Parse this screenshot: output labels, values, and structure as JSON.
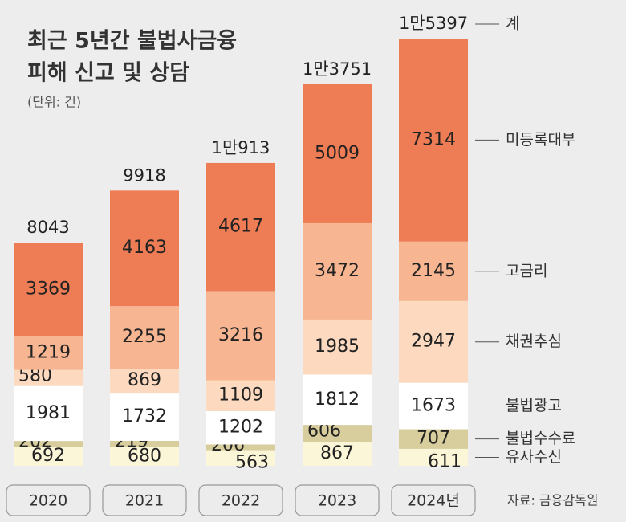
{
  "chart_data": {
    "type": "stacked-bar",
    "title": [
      "최근 5년간 불법사금융",
      "피해 신고 및 상담"
    ],
    "unit": "(단위: 건)",
    "source": "자료: 금융감독원",
    "categories": [
      "2020",
      "2021",
      "2022",
      "2023",
      "2024년"
    ],
    "series": [
      {
        "name": "유사수신",
        "color": "#fbf6d8",
        "values": [
          692,
          680,
          563,
          867,
          611
        ]
      },
      {
        "name": "불법수수료",
        "color": "#d8cd9c",
        "values": [
          202,
          219,
          206,
          606,
          707
        ]
      },
      {
        "name": "불법광고",
        "color": "#ffffff",
        "values": [
          1981,
          1732,
          1202,
          1812,
          1673
        ]
      },
      {
        "name": "채권추심",
        "color": "#fcd9bf",
        "values": [
          580,
          869,
          1109,
          1985,
          2947
        ]
      },
      {
        "name": "고금리",
        "color": "#f7b591",
        "values": [
          1219,
          2255,
          3216,
          3472,
          2145
        ]
      },
      {
        "name": "미등록대부",
        "color": "#ee7c55",
        "values": [
          3369,
          4163,
          4617,
          5009,
          7314
        ]
      }
    ],
    "total_name": "계",
    "totals": [
      8043,
      9918,
      10913,
      13751,
      15397
    ],
    "total_labels": [
      "8043",
      "9918",
      "1만913",
      "1만3751",
      "1만5397"
    ]
  }
}
